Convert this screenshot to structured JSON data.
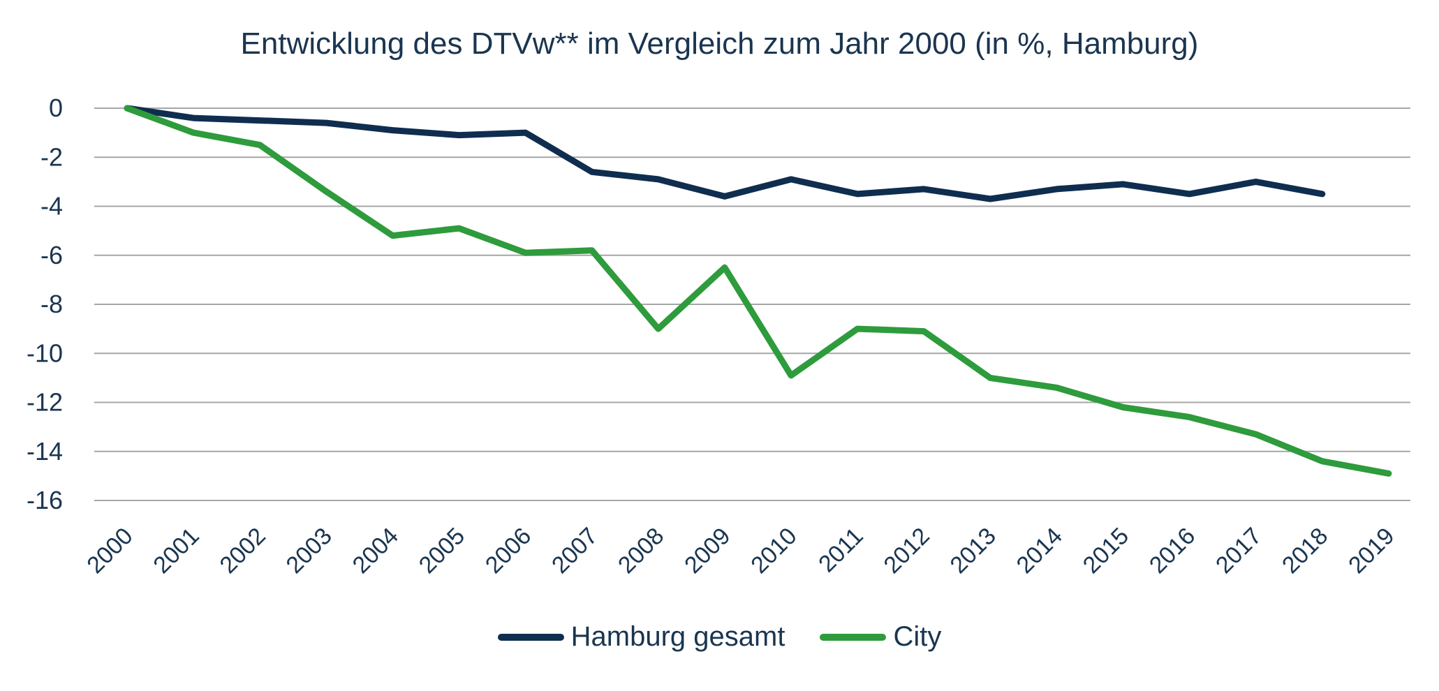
{
  "chart_data": {
    "type": "line",
    "title": "Entwicklung des DTVw** im Vergleich zum Jahr 2000 (in %, Hamburg)",
    "xlabel": "",
    "ylabel": "",
    "ylim": [
      -16,
      0
    ],
    "y_ticks": [
      0,
      -2,
      -4,
      -6,
      -8,
      -10,
      -12,
      -14,
      -16
    ],
    "categories": [
      "2000",
      "2001",
      "2002",
      "2003",
      "2004",
      "2005",
      "2006",
      "2007",
      "2008",
      "2009",
      "2010",
      "2011",
      "2012",
      "2013",
      "2014",
      "2015",
      "2016",
      "2017",
      "2018",
      "2019"
    ],
    "grid": true,
    "legend_position": "bottom",
    "series": [
      {
        "name": "Hamburg gesamt",
        "color": "#0f2d4f",
        "values": [
          0,
          -0.4,
          -0.5,
          -0.6,
          -0.9,
          -1.1,
          -1.0,
          -2.6,
          -2.9,
          -3.6,
          -2.9,
          -3.5,
          -3.3,
          -3.7,
          -3.3,
          -3.1,
          -3.5,
          -3.0,
          -3.5,
          null
        ]
      },
      {
        "name": "City",
        "color": "#2e9b3c",
        "values": [
          0,
          -1.0,
          -1.5,
          -3.4,
          -5.2,
          -4.9,
          -5.9,
          -5.8,
          -9.0,
          -6.5,
          -10.9,
          -9.0,
          -9.1,
          -11.0,
          -11.4,
          -12.2,
          -12.6,
          -13.3,
          -14.4,
          -14.9
        ]
      }
    ]
  }
}
